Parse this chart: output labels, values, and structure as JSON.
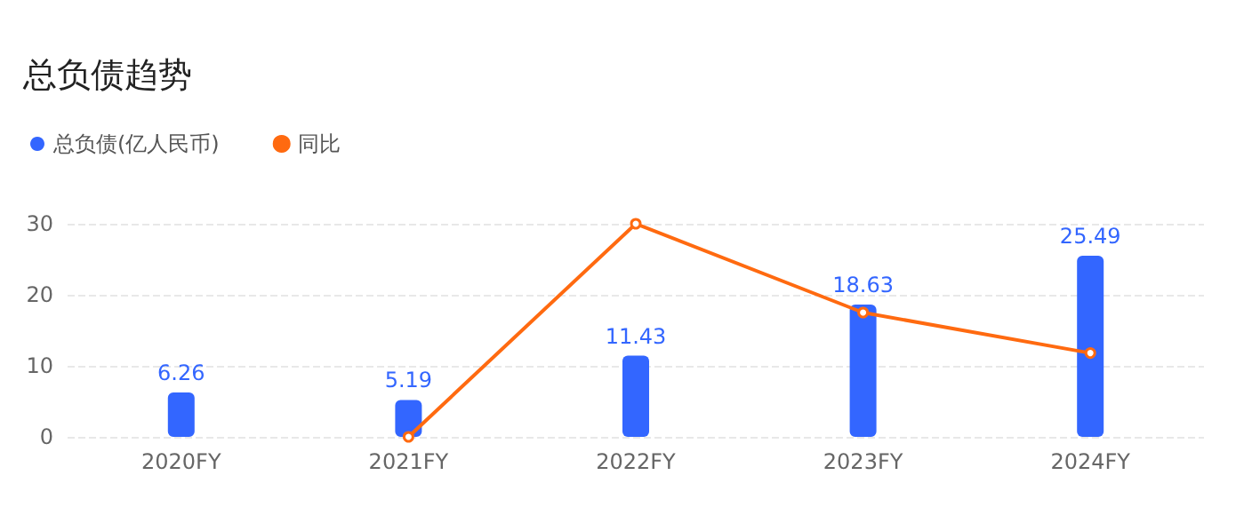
{
  "chart_data": {
    "type": "bar",
    "title": "总负债趋势",
    "categories": [
      "2020FY",
      "2021FY",
      "2022FY",
      "2023FY",
      "2024FY"
    ],
    "series": [
      {
        "name": "总负债(亿人民币)",
        "color": "#3366ff",
        "values": [
          6.26,
          5.19,
          11.43,
          18.63,
          25.49
        ],
        "value_labels": [
          "6.26",
          "5.19",
          "11.43",
          "18.63",
          "25.49"
        ]
      },
      {
        "name": "同比",
        "type": "line",
        "color": "#ff6a10",
        "values": [
          null,
          0,
          30,
          17.5,
          11.8
        ],
        "marker": "circle"
      }
    ],
    "ylim": [
      0,
      30
    ],
    "yticks": [
      0,
      10,
      20,
      30
    ],
    "grid": "y",
    "legend": "top left"
  }
}
